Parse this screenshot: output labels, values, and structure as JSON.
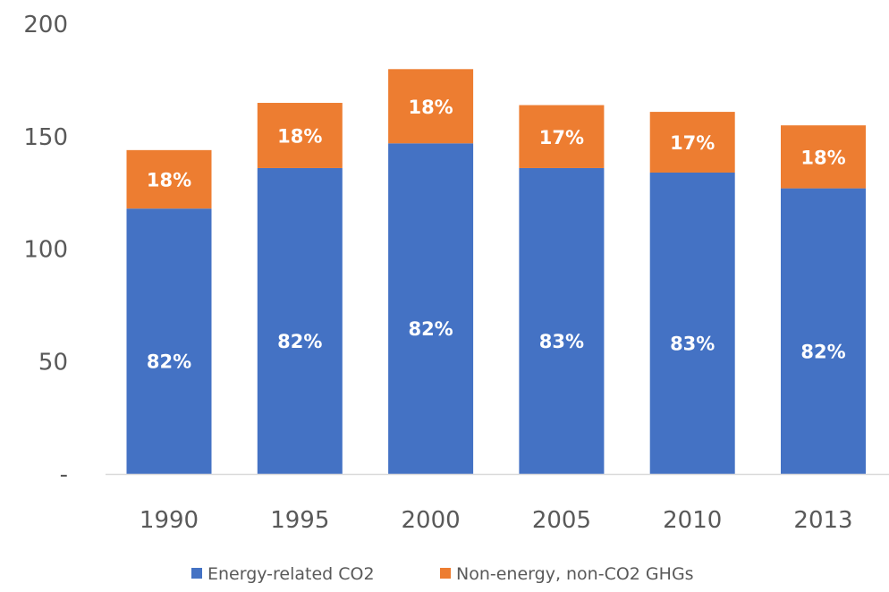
{
  "chart_data": {
    "type": "bar",
    "stacked": true,
    "categories": [
      "1990",
      "1995",
      "2000",
      "2005",
      "2010",
      "2013"
    ],
    "series": [
      {
        "name": "Energy-related CO2",
        "color": "#4472C4",
        "values": [
          118,
          136,
          147,
          136,
          134,
          127
        ],
        "labels": [
          "82%",
          "82%",
          "82%",
          "83%",
          "83%",
          "82%"
        ]
      },
      {
        "name": "Non-energy, non-CO2 GHGs",
        "color": "#ED7D31",
        "values": [
          26,
          29,
          33,
          28,
          27,
          28
        ],
        "labels": [
          "18%",
          "18%",
          "18%",
          "17%",
          "17%",
          "18%"
        ]
      }
    ],
    "yticks": [
      0,
      50,
      100,
      150,
      200
    ],
    "ytick_labels": [
      "-",
      "50",
      "100",
      "150",
      "200"
    ],
    "ylim": [
      0,
      200
    ],
    "title": "",
    "xlabel": "",
    "ylabel": "",
    "grid": false,
    "legend_position": "bottom"
  }
}
